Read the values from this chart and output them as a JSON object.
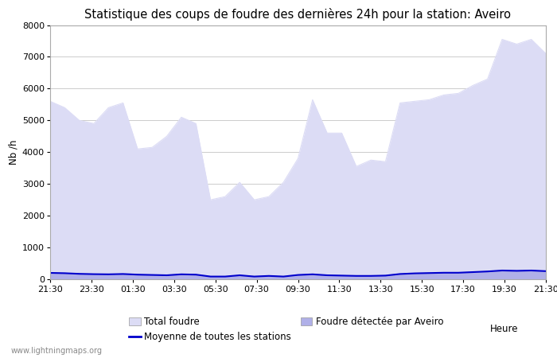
{
  "title": "Statistique des coups de foudre des dernières 24h pour la station: Aveiro",
  "xlabel": "Heure",
  "ylabel": "Nb /h",
  "watermark": "www.lightningmaps.org",
  "x_labels": [
    "21:30",
    "23:30",
    "01:30",
    "03:30",
    "05:30",
    "07:30",
    "09:30",
    "11:30",
    "13:30",
    "15:30",
    "17:30",
    "19:30",
    "21:30"
  ],
  "ylim": [
    0,
    8000
  ],
  "yticks": [
    0,
    1000,
    2000,
    3000,
    4000,
    5000,
    6000,
    7000,
    8000
  ],
  "total_foudre": [
    5600,
    5400,
    5000,
    4900,
    5400,
    5550,
    4100,
    4150,
    4500,
    5100,
    4900,
    2500,
    2600,
    3050,
    2500,
    2600,
    3050,
    3800,
    5650,
    4600,
    4600,
    3550,
    3750,
    3700,
    5550,
    5600,
    5650,
    5800,
    5850,
    6100,
    6300,
    7550,
    7400,
    7550,
    7100
  ],
  "foudre_aveiro": [
    200,
    190,
    170,
    160,
    155,
    165,
    145,
    135,
    125,
    155,
    145,
    85,
    85,
    125,
    85,
    105,
    85,
    135,
    155,
    125,
    115,
    105,
    105,
    115,
    165,
    185,
    195,
    205,
    205,
    225,
    245,
    275,
    265,
    275,
    255
  ],
  "moyenne": [
    200,
    190,
    170,
    160,
    155,
    165,
    145,
    135,
    125,
    155,
    145,
    85,
    85,
    125,
    85,
    105,
    85,
    135,
    155,
    125,
    115,
    105,
    105,
    115,
    165,
    185,
    195,
    205,
    205,
    225,
    245,
    275,
    265,
    275,
    255
  ],
  "color_total": "#dcdcf5",
  "color_aveiro": "#b0b0e8",
  "color_moyenne": "#0000cc",
  "bg_color": "#ffffff",
  "plot_bg_color": "#ffffff",
  "grid_color": "#cccccc",
  "title_fontsize": 10.5,
  "label_fontsize": 8.5,
  "tick_fontsize": 8
}
